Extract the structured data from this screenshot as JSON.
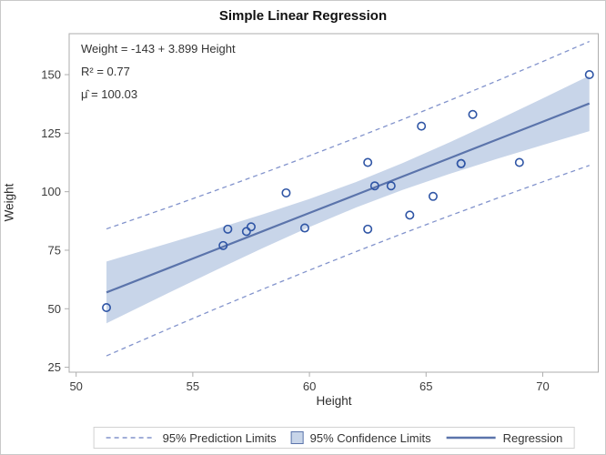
{
  "chart": {
    "title": "Simple Linear Regression",
    "xlabel": "Height",
    "ylabel": "Weight"
  },
  "chart_data": {
    "type": "scatter",
    "title": "Simple Linear Regression",
    "xlabel": "Height",
    "ylabel": "Weight",
    "x_ticks": [
      50,
      55,
      60,
      65,
      70
    ],
    "y_ticks": [
      25,
      50,
      75,
      100,
      125,
      150
    ],
    "xlim": [
      49.7,
      72.4
    ],
    "ylim": [
      22.9,
      167.5
    ],
    "points": [
      [
        69.0,
        112.5
      ],
      [
        56.5,
        84.0
      ],
      [
        65.3,
        98.0
      ],
      [
        62.8,
        102.5
      ],
      [
        63.5,
        102.5
      ],
      [
        57.3,
        83.0
      ],
      [
        59.8,
        84.5
      ],
      [
        62.5,
        112.5
      ],
      [
        62.5,
        84.0
      ],
      [
        59.0,
        99.5
      ],
      [
        51.3,
        50.5
      ],
      [
        64.3,
        90.0
      ],
      [
        56.3,
        77.0
      ],
      [
        66.5,
        112.0
      ],
      [
        72.0,
        150.0
      ],
      [
        64.8,
        128.0
      ],
      [
        67.0,
        133.0
      ],
      [
        57.5,
        85.0
      ],
      [
        66.5,
        112.0
      ]
    ],
    "regression": {
      "intercept": -143,
      "slope": 3.899
    },
    "band": [
      {
        "x": 51.3,
        "fit": 56.99,
        "clm": 13.19,
        "cli": 27.11
      },
      {
        "x": 54.0,
        "fit": 67.52,
        "clm": 10.58,
        "cli": 25.94
      },
      {
        "x": 56.0,
        "fit": 75.32,
        "clm": 8.78,
        "cli": 25.26
      },
      {
        "x": 58.0,
        "fit": 83.12,
        "clm": 7.2,
        "cli": 24.76
      },
      {
        "x": 60.0,
        "fit": 90.91,
        "clm": 6.0,
        "cli": 24.43
      },
      {
        "x": 62.0,
        "fit": 98.71,
        "clm": 5.45,
        "cli": 24.3
      },
      {
        "x": 64.0,
        "fit": 106.51,
        "clm": 5.73,
        "cli": 24.37
      },
      {
        "x": 66.0,
        "fit": 114.31,
        "clm": 6.74,
        "cli": 24.63
      },
      {
        "x": 68.0,
        "fit": 122.11,
        "clm": 8.22,
        "cli": 25.07
      },
      {
        "x": 70.0,
        "fit": 129.9,
        "clm": 9.96,
        "cli": 25.69
      },
      {
        "x": 72.0,
        "fit": 137.7,
        "clm": 11.84,
        "cli": 26.48
      }
    ],
    "inset_lines": [
      "Weight = -143 + 3.899 Height",
      "R² = 0.77",
      "μ̂ = 100.03"
    ],
    "legend": [
      {
        "label": "95% Prediction Limits",
        "swatch": "dashed-line"
      },
      {
        "label": "95% Confidence Limits",
        "swatch": "filled-square"
      },
      {
        "label": "Regression",
        "swatch": "solid-line"
      }
    ],
    "colors": {
      "marker": "#2f55a5",
      "fit_line": "#5b74ab",
      "confidence_band": "#c8d5e9",
      "prediction_line": "#8293cc",
      "frame": "#adadad",
      "tick_text": "#3c3c3c"
    },
    "legend_position": "bottom",
    "grid": false
  }
}
